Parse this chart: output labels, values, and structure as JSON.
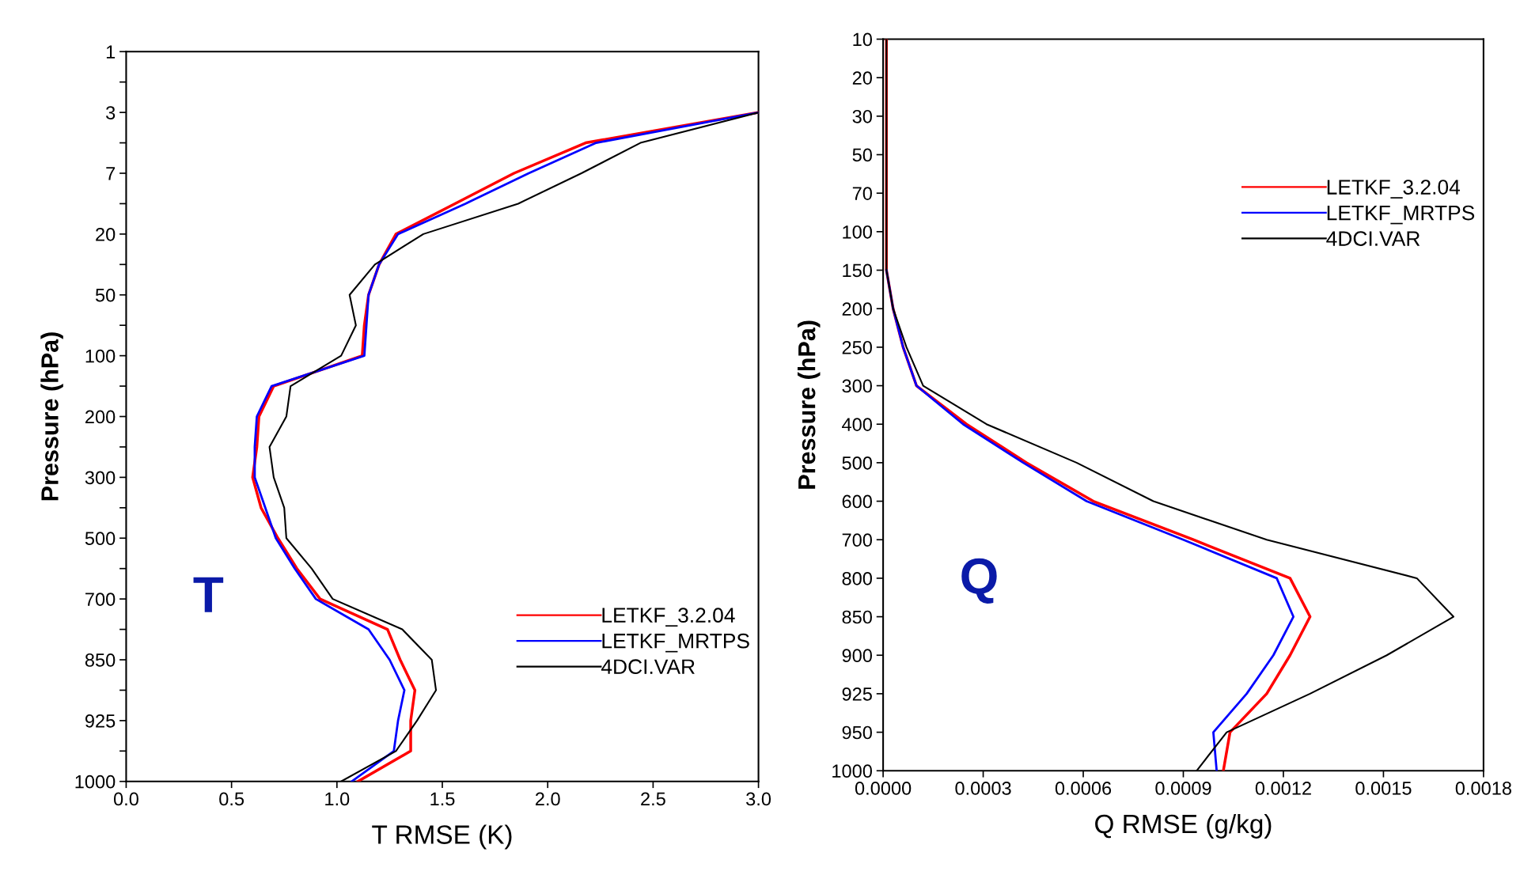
{
  "chart_data": [
    {
      "type": "line",
      "orientation": "horizontal",
      "xlabel": "T RMSE (K)",
      "ylabel": "Pressure (hPa)",
      "xlim": [
        0.0,
        3.0
      ],
      "xticks": [
        {
          "value": 0,
          "label": "0.0"
        },
        0.5,
        {
          "value": 1,
          "label": "1.0"
        },
        1.5,
        {
          "value": 2,
          "label": "2.0"
        },
        2.5,
        {
          "value": 3,
          "label": "3.0"
        }
      ],
      "grid": false,
      "legend": "lower right",
      "annotations": [
        "T"
      ],
      "categories": [
        "1",
        null,
        "3",
        null,
        "7",
        null,
        "20",
        null,
        "50",
        null,
        "100",
        null,
        "200",
        null,
        "300",
        null,
        "500",
        null,
        "700",
        null,
        "850",
        null,
        "925",
        null,
        "1000"
      ],
      "series": [
        {
          "name": "LETKF_3.2.04",
          "color": "#ff0000",
          "values": [
            null,
            null,
            3.0,
            2.18,
            1.84,
            1.56,
            1.28,
            1.2,
            1.15,
            1.13,
            1.12,
            0.7,
            0.63,
            0.62,
            0.6,
            0.64,
            0.72,
            0.81,
            0.92,
            1.24,
            1.3,
            1.37,
            1.35,
            1.35,
            1.1
          ]
        },
        {
          "name": "LETKF_MRTPS",
          "color": "#0000ff",
          "values": [
            null,
            null,
            3.0,
            2.23,
            1.91,
            1.61,
            1.29,
            1.2,
            1.15,
            1.14,
            1.13,
            0.69,
            0.62,
            0.61,
            0.61,
            0.66,
            0.71,
            0.8,
            0.9,
            1.15,
            1.25,
            1.32,
            1.29,
            1.27,
            1.07
          ]
        },
        {
          "name": "4DCI.VAR",
          "color": "#000000",
          "values": [
            null,
            null,
            3.0,
            2.44,
            2.16,
            1.86,
            1.41,
            1.18,
            1.06,
            1.09,
            1.02,
            0.78,
            0.76,
            0.68,
            0.7,
            0.75,
            0.76,
            0.88,
            0.98,
            1.31,
            1.45,
            1.47,
            1.38,
            1.28,
            1.02
          ]
        }
      ]
    },
    {
      "type": "line",
      "orientation": "horizontal",
      "xlabel": "Q RMSE (g/kg)",
      "ylabel": "Pressure (hPa)",
      "xlim": [
        0.0,
        0.0018
      ],
      "xticks": [
        {
          "value": 0,
          "label": "0.0000"
        },
        {
          "value": 0.0003,
          "label": "0.0003"
        },
        {
          "value": 0.0006,
          "label": "0.0006"
        },
        {
          "value": 0.0009,
          "label": "0.0009"
        },
        {
          "value": 0.0012,
          "label": "0.0012"
        },
        {
          "value": 0.0015,
          "label": "0.0015"
        },
        {
          "value": 0.0018,
          "label": "0.0018"
        }
      ],
      "grid": false,
      "legend": "upper right",
      "annotations": [
        "Q"
      ],
      "categories": [
        "10",
        "20",
        "30",
        "50",
        "70",
        "100",
        "150",
        "200",
        "250",
        "300",
        "400",
        "500",
        "600",
        "700",
        "800",
        "850",
        "900",
        "925",
        "950",
        "1000"
      ],
      "series": [
        {
          "name": "LETKF_3.2.04",
          "color": "#ff0000",
          "values": [
            1e-05,
            1e-05,
            1e-05,
            1e-05,
            1e-05,
            1e-05,
            1e-05,
            3e-05,
            6e-05,
            0.0001,
            0.00025,
            0.00043,
            0.00063,
            0.00093,
            0.00122,
            0.00128,
            0.00122,
            0.00115,
            0.00104,
            0.00102
          ]
        },
        {
          "name": "LETKF_MRTPS",
          "color": "#0000ff",
          "values": [
            null,
            null,
            null,
            null,
            null,
            null,
            1e-05,
            3e-05,
            6e-05,
            0.0001,
            0.00024,
            0.00042,
            0.00061,
            0.0009,
            0.00118,
            0.00123,
            0.00117,
            0.00109,
            0.00099,
            0.001
          ]
        },
        {
          "name": "4DCI.VAR",
          "color": "#000000",
          "values": [
            1e-05,
            1e-05,
            1e-05,
            1e-05,
            1e-05,
            1e-05,
            1e-05,
            3e-05,
            7e-05,
            0.00012,
            0.00031,
            0.00058,
            0.00081,
            0.00115,
            0.0016,
            0.00171,
            0.00151,
            0.00128,
            0.00103,
            0.00094
          ]
        }
      ]
    }
  ]
}
